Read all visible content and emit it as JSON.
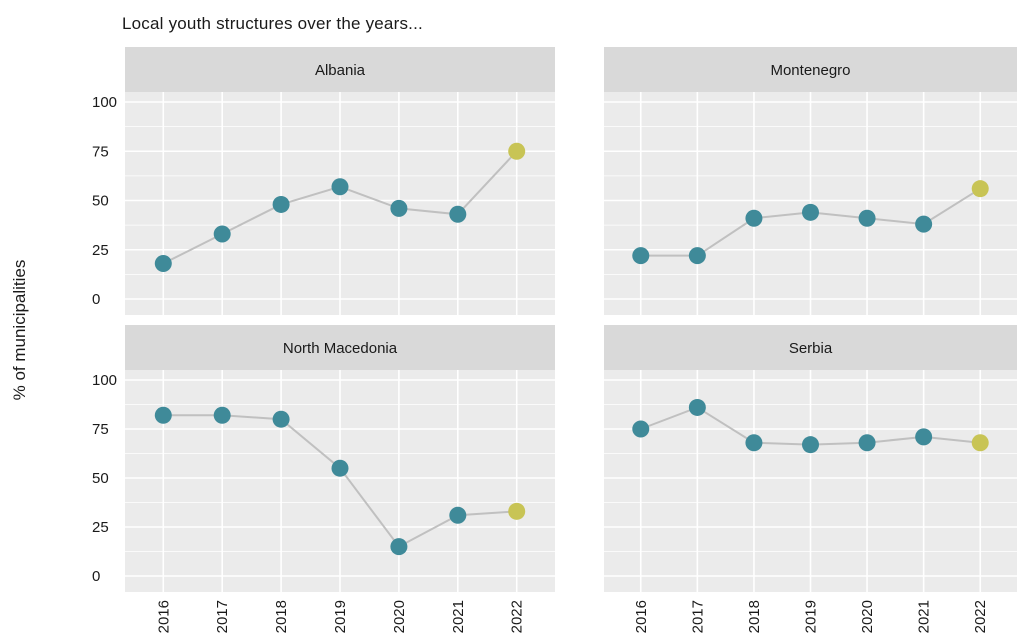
{
  "title": "Local youth structures over the years...",
  "ylabel": "% of municipalities",
  "colors": {
    "panel_bg": "#ebebeb",
    "strip_bg": "#d9d9d9",
    "grid": "#ffffff",
    "line": "#c0c0c0",
    "point": "#3f8a99",
    "highlight": "#c8c455"
  },
  "chart_data": {
    "type": "line",
    "layout": "facet-2x2",
    "title": "Local youth structures over the years...",
    "xlabel": "",
    "ylabel": "% of municipalities",
    "ylim": [
      0,
      100
    ],
    "yticks": [
      "0",
      "25",
      "50",
      "75",
      "100"
    ],
    "x": [
      "2016",
      "2017",
      "2018",
      "2019",
      "2020",
      "2021",
      "2022"
    ],
    "highlight_last_point": true,
    "series": [
      {
        "name": "Albania",
        "values": [
          18,
          33,
          48,
          57,
          46,
          43,
          75
        ]
      },
      {
        "name": "Montenegro",
        "values": [
          22,
          22,
          41,
          44,
          41,
          38,
          56
        ]
      },
      {
        "name": "North Macedonia",
        "values": [
          82,
          82,
          80,
          55,
          15,
          31,
          33
        ]
      },
      {
        "name": "Serbia",
        "values": [
          75,
          86,
          68,
          67,
          68,
          71,
          68
        ]
      }
    ]
  }
}
